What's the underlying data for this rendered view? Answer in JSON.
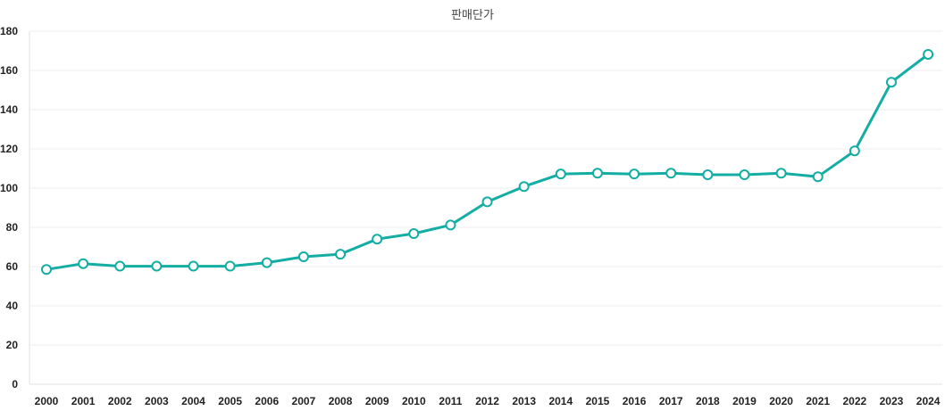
{
  "chart_data": {
    "type": "line",
    "title": "판매단가",
    "xlabel": "",
    "ylabel": "",
    "x": [
      "2000",
      "2001",
      "2002",
      "2003",
      "2004",
      "2005",
      "2006",
      "2007",
      "2008",
      "2009",
      "2010",
      "2011",
      "2012",
      "2013",
      "2014",
      "2015",
      "2016",
      "2017",
      "2018",
      "2019",
      "2020",
      "2021",
      "2022",
      "2023",
      "2024"
    ],
    "series": [
      {
        "values": [
          58.5,
          61.5,
          60.2,
          60.2,
          60.2,
          60.2,
          62,
          65,
          66.3,
          74,
          76.8,
          81.2,
          93,
          100.8,
          107.2,
          107.6,
          107.2,
          107.6,
          106.8,
          106.8,
          107.6,
          105.8,
          119,
          154,
          168.2
        ],
        "color": "#13ada4"
      }
    ],
    "ylim": [
      0,
      180
    ],
    "yticks": [
      0,
      20,
      40,
      60,
      80,
      100,
      120,
      140,
      160,
      180
    ],
    "grid": true,
    "legend": "none"
  }
}
